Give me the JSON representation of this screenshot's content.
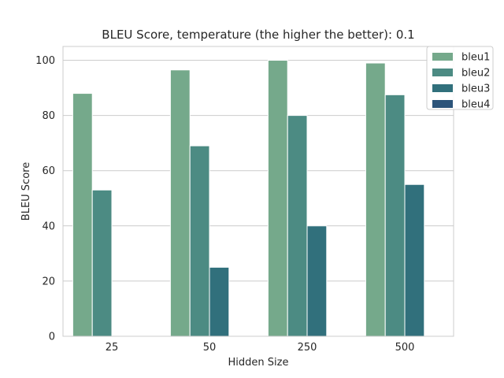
{
  "chart_data": {
    "type": "bar",
    "title": "BLEU Score, temperature (the higher the better): 0.1",
    "xlabel": "Hidden Size",
    "ylabel": "BLEU Score",
    "categories": [
      "25",
      "50",
      "250",
      "500"
    ],
    "ylim": [
      0,
      105
    ],
    "yticks": [
      0,
      20,
      40,
      60,
      80,
      100
    ],
    "grid": true,
    "legend_position": "top-right",
    "series": [
      {
        "name": "bleu1",
        "color": "#75a98b",
        "values": [
          88,
          96.5,
          100,
          99
        ]
      },
      {
        "name": "bleu2",
        "color": "#4c8b83",
        "values": [
          53,
          69,
          80,
          87.5
        ]
      },
      {
        "name": "bleu3",
        "color": "#31707c",
        "values": [
          0,
          25,
          40,
          55
        ]
      },
      {
        "name": "bleu4",
        "color": "#2c547a",
        "values": [
          0,
          0,
          0,
          0
        ]
      }
    ]
  }
}
